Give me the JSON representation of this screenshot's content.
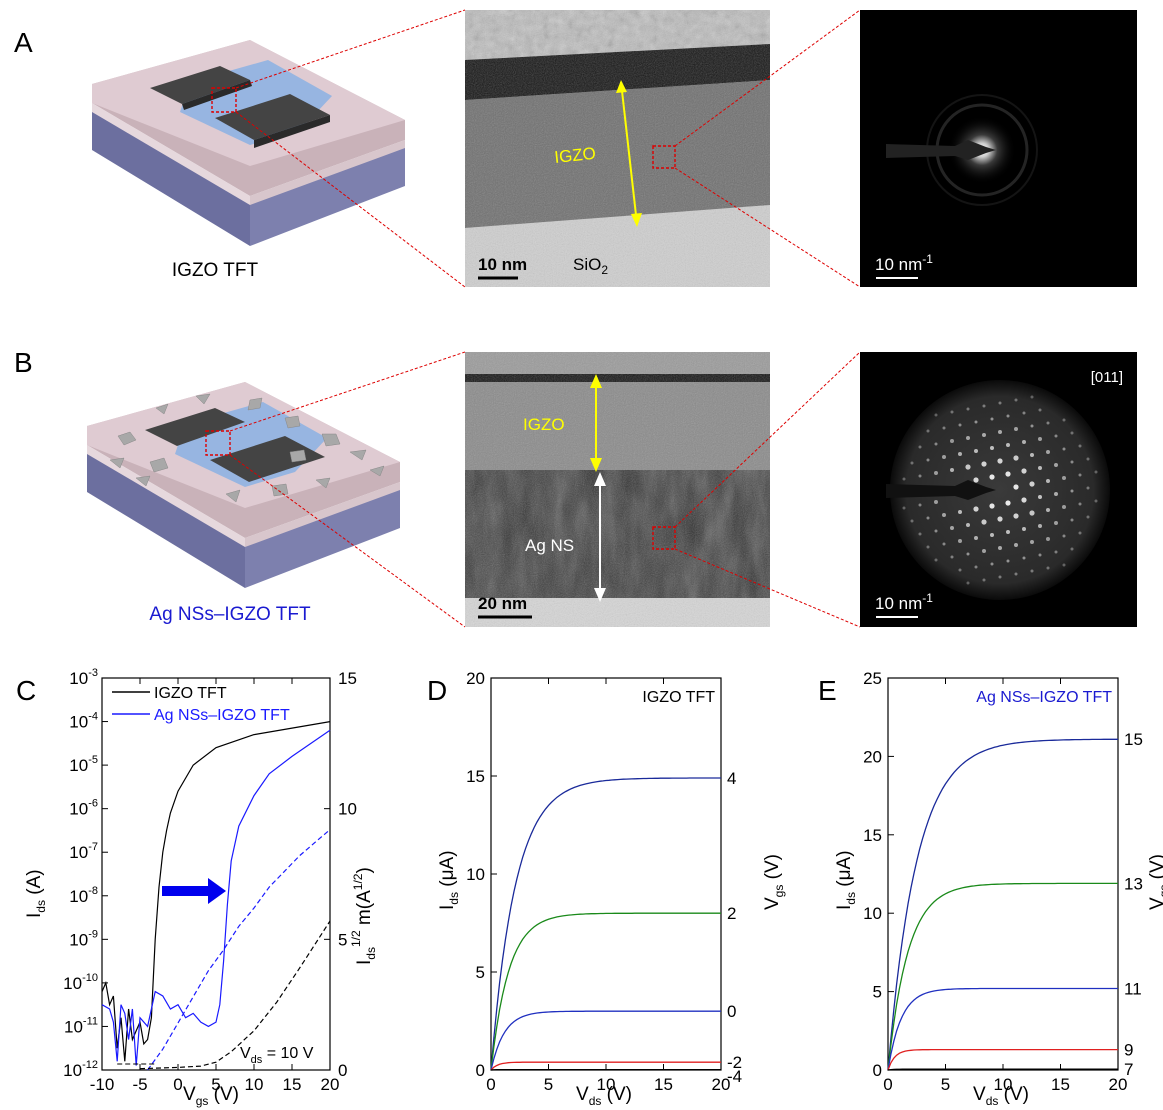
{
  "panels": {
    "A": {
      "letter": "A",
      "device_label": "IGZO TFT",
      "tem_layer_label": "IGZO",
      "tem_scale_label": "10 nm",
      "tem_substrate_label": "SiO",
      "tem_substrate_sub": "2",
      "saed_scale_label": "10 nm",
      "saed_scale_sup": "-1"
    },
    "B": {
      "letter": "B",
      "device_label": "Ag NSs–IGZO TFT",
      "tem_layer_label": "IGZO",
      "tem_lower_label": "Ag NS",
      "tem_scale_label": "20 nm",
      "saed_scale_label": "10 nm",
      "saed_scale_sup": "-1",
      "saed_zone_axis": "[011]"
    }
  },
  "colors": {
    "igzo_curve": "#000000",
    "ag_curve": "#1a1aff",
    "arrow": "#0000ee",
    "zoom_lines": "#dd0000",
    "annotation_yellow": "#ffff00",
    "device_label_blue": "#1a1ad0",
    "curve_vgs_high": "#1a2a9a",
    "curve_green": "#1a8a1a",
    "curve_blue": "#2030c0",
    "curve_red": "#e02020"
  },
  "chart_data": [
    {
      "id": "C",
      "letter": "C",
      "type": "line",
      "xlabel": "V",
      "xlabel_sub": "gs",
      "xlabel_unit": " (V)",
      "xlim": [
        -10,
        20
      ],
      "xticks": [
        "-10",
        "-5",
        "0",
        "5",
        "10",
        "15",
        "20"
      ],
      "ylabel_left": "I",
      "ylabel_left_sub": "ds",
      "ylabel_left_unit": " (A)",
      "ylog": true,
      "ylim_left_exp": [
        -12,
        -3
      ],
      "ylabel_right": "I",
      "ylabel_right_sub": "ds",
      "ylabel_right_sup": "1/2",
      "ylabel_right_unit": " m(A",
      "ylabel_right_unit_sup": "1/2",
      "ylabel_right_close": ")",
      "ylim_right": [
        0,
        15
      ],
      "yticks_right": [
        "0",
        "5",
        "10",
        "15"
      ],
      "annotation": "V",
      "annotation_sub": "ds",
      "annotation_val": " = 10 V",
      "legend_position": "top-left",
      "series": [
        {
          "name": "IGZO TFT",
          "axis": "left",
          "style": "solid",
          "color": "#000000",
          "points": [
            [
              -10,
              -10.2
            ],
            [
              -9.5,
              -10.0
            ],
            [
              -9,
              -10.5
            ],
            [
              -8.5,
              -10.3
            ],
            [
              -8,
              -11.5
            ],
            [
              -7.5,
              -10.8
            ],
            [
              -7,
              -11.8
            ],
            [
              -6.5,
              -10.6
            ],
            [
              -6,
              -11.3
            ],
            [
              -5.5,
              -11.1
            ],
            [
              -5,
              -10.9
            ],
            [
              -4.5,
              -11.4
            ],
            [
              -4,
              -11.3
            ],
            [
              -3.5,
              -10.8
            ],
            [
              -3,
              -9.0
            ],
            [
              -2.5,
              -7.8
            ],
            [
              -2,
              -7.0
            ],
            [
              -1.5,
              -6.5
            ],
            [
              -1,
              -6.1
            ],
            [
              0,
              -5.6
            ],
            [
              2,
              -5.0
            ],
            [
              5,
              -4.6
            ],
            [
              10,
              -4.3
            ],
            [
              15,
              -4.15
            ],
            [
              20,
              -4.0
            ]
          ]
        },
        {
          "name": "Ag NSs–IGZO TFT",
          "axis": "left",
          "style": "solid",
          "color": "#1a1aff",
          "points": [
            [
              -10,
              -10.5
            ],
            [
              -9,
              -10.6
            ],
            [
              -8.5,
              -10.9
            ],
            [
              -8,
              -11.8
            ],
            [
              -7.5,
              -10.5
            ],
            [
              -7,
              -10.7
            ],
            [
              -6.5,
              -11.3
            ],
            [
              -6,
              -10.6
            ],
            [
              -5.5,
              -11.9
            ],
            [
              -5,
              -10.8
            ],
            [
              -4,
              -11.0
            ],
            [
              -3,
              -10.2
            ],
            [
              -2,
              -10.3
            ],
            [
              -1,
              -10.6
            ],
            [
              0,
              -10.5
            ],
            [
              1,
              -10.8
            ],
            [
              2,
              -10.7
            ],
            [
              3,
              -10.9
            ],
            [
              4,
              -11.0
            ],
            [
              5,
              -10.9
            ],
            [
              5.5,
              -10.5
            ],
            [
              6,
              -9.5
            ],
            [
              6.5,
              -8.2
            ],
            [
              7,
              -7.2
            ],
            [
              8,
              -6.4
            ],
            [
              10,
              -5.7
            ],
            [
              12,
              -5.2
            ],
            [
              15,
              -4.8
            ],
            [
              20,
              -4.2
            ]
          ]
        },
        {
          "name": "",
          "axis": "right",
          "style": "dashed",
          "color": "#1a1aff",
          "points": [
            [
              -4,
              0
            ],
            [
              -2,
              0.8
            ],
            [
              0,
              1.8
            ],
            [
              2,
              2.8
            ],
            [
              4,
              3.8
            ],
            [
              6,
              4.6
            ],
            [
              8,
              5.5
            ],
            [
              10,
              6.2
            ],
            [
              12,
              7.0
            ],
            [
              14,
              7.6
            ],
            [
              16,
              8.2
            ],
            [
              18,
              8.7
            ],
            [
              20,
              9.2
            ]
          ]
        },
        {
          "name": "",
          "axis": "right",
          "style": "dashed",
          "color": "#000000",
          "points": [
            [
              -5,
              0.05
            ],
            [
              0,
              0.1
            ],
            [
              3,
              0.15
            ],
            [
              5,
              0.3
            ],
            [
              7,
              0.7
            ],
            [
              10,
              1.5
            ],
            [
              13,
              2.6
            ],
            [
              16,
              3.9
            ],
            [
              18,
              4.8
            ],
            [
              20,
              5.7
            ]
          ]
        }
      ]
    },
    {
      "id": "D",
      "letter": "D",
      "type": "line",
      "title": "IGZO TFT",
      "xlabel": "V",
      "xlabel_sub": "ds",
      "xlabel_unit": " (V)",
      "xlim": [
        0,
        20
      ],
      "xticks": [
        "0",
        "5",
        "10",
        "15",
        "20"
      ],
      "ylabel": "I",
      "ylabel_sub": "ds",
      "ylabel_unit": " (μA)",
      "ylim": [
        0,
        20
      ],
      "yticks": [
        "0",
        "5",
        "10",
        "15",
        "20"
      ],
      "ylabel_right": "V",
      "ylabel_right_sub": "gs",
      "ylabel_right_unit": " (V)",
      "curves": [
        {
          "label": "4",
          "saturation": 14.9,
          "knee": 5.5,
          "color": "#1a2a9a"
        },
        {
          "label": "2",
          "saturation": 8.0,
          "knee": 4.0,
          "color": "#1a8a1a"
        },
        {
          "label": "0",
          "saturation": 3.0,
          "knee": 3.0,
          "color": "#2030c0"
        },
        {
          "label": "-2",
          "saturation": 0.4,
          "knee": 1.5,
          "color": "#e02020"
        },
        {
          "label": "-4",
          "saturation": 0.02,
          "knee": 1.0,
          "color": "#000000"
        }
      ]
    },
    {
      "id": "E",
      "letter": "E",
      "type": "line",
      "title": "Ag NSs–IGZO TFT",
      "xlabel": "V",
      "xlabel_sub": "ds",
      "xlabel_unit": " (V)",
      "xlim": [
        0,
        20
      ],
      "xticks": [
        "0",
        "5",
        "10",
        "15",
        "20"
      ],
      "ylabel": "I",
      "ylabel_sub": "ds",
      "ylabel_unit": " (μA)",
      "ylim": [
        0,
        25
      ],
      "yticks": [
        "0",
        "5",
        "10",
        "15",
        "20",
        "25"
      ],
      "ylabel_right": "V",
      "ylabel_right_sub": "gs",
      "ylabel_right_unit": " (V)",
      "curves": [
        {
          "label": "15",
          "saturation": 21.1,
          "knee": 6.5,
          "color": "#1a2a9a"
        },
        {
          "label": "13",
          "saturation": 11.9,
          "knee": 4.5,
          "color": "#1a8a1a"
        },
        {
          "label": "11",
          "saturation": 5.2,
          "knee": 3.0,
          "color": "#2030c0"
        },
        {
          "label": "9",
          "saturation": 1.3,
          "knee": 1.5,
          "color": "#e02020"
        },
        {
          "label": "7",
          "saturation": 0.05,
          "knee": 1.0,
          "color": "#000000"
        }
      ]
    }
  ]
}
